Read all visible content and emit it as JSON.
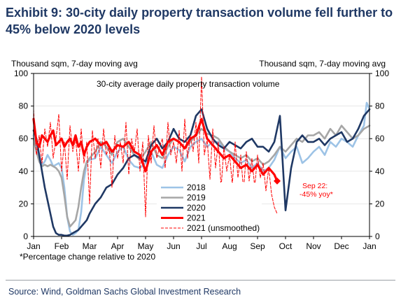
{
  "title_line1": "Exhibit 9: 30-city daily property transaction volume fell further to",
  "title_line2": "45% below 2020 levels",
  "left_unit": "Thousand sqm, 7-day moving avg",
  "right_unit": "Thousand sqm, 7-day moving avg",
  "footnote": "*Percentage change relative to 2020",
  "source": "Source: Wind, Goldman Sachs Global Investment Research",
  "chart_data": {
    "type": "line",
    "title": "30-city average daily property transaction volume",
    "ylabel_left": "Thousand sqm, 7-day moving avg",
    "ylabel_right": "Thousand sqm, 7-day moving avg",
    "xlim": [
      0,
      12
    ],
    "ylim": [
      0,
      100
    ],
    "y_ticks": [
      0,
      20,
      40,
      60,
      80,
      100
    ],
    "x_tick_labels": [
      "Jan",
      "Feb",
      "Mar",
      "Apr",
      "May",
      "Jun",
      "Jul",
      "Aug",
      "Sep",
      "Oct",
      "Nov",
      "Dec",
      "Jan"
    ],
    "legend_position": "lower-center",
    "annotation": {
      "line1": "Sep 22:",
      "line2": "-45% yoy*",
      "x": 8.7,
      "y": 34,
      "color": "#ff0000"
    },
    "series": [
      {
        "name": "2018",
        "color": "#9dc3e6",
        "width": 2.6,
        "dash": "",
        "x": [
          0,
          0.1,
          0.2,
          0.3,
          0.4,
          0.5,
          0.6,
          0.7,
          0.8,
          0.9,
          1.0,
          1.1,
          1.2,
          1.3,
          1.4,
          1.5,
          1.6,
          1.7,
          1.8,
          1.9,
          2.0,
          2.2,
          2.4,
          2.6,
          2.8,
          3.0,
          3.2,
          3.4,
          3.6,
          3.8,
          4.0,
          4.2,
          4.4,
          4.6,
          4.8,
          5.0,
          5.2,
          5.4,
          5.6,
          5.8,
          6.0,
          6.2,
          6.4,
          6.6,
          6.8,
          7.0,
          7.2,
          7.4,
          7.6,
          7.8,
          8.0,
          8.2,
          8.4,
          8.6,
          8.8,
          9.0,
          9.2,
          9.4,
          9.6,
          9.8,
          10.0,
          10.2,
          10.4,
          10.6,
          10.8,
          11.0,
          11.2,
          11.4,
          11.6,
          11.8,
          11.9,
          12.0
        ],
        "y": [
          62,
          55,
          48,
          44,
          46,
          50,
          47,
          43,
          44,
          45,
          42,
          30,
          12,
          3,
          1,
          2,
          4,
          15,
          35,
          45,
          47,
          48,
          55,
          50,
          45,
          52,
          55,
          47,
          43,
          42,
          45,
          52,
          44,
          42,
          50,
          55,
          53,
          46,
          55,
          58,
          60,
          55,
          58,
          58,
          54,
          52,
          48,
          45,
          47,
          42,
          45,
          40,
          42,
          47,
          55,
          48,
          52,
          55,
          45,
          48,
          52,
          55,
          50,
          58,
          55,
          60,
          58,
          55,
          62,
          68,
          82,
          78
        ]
      },
      {
        "name": "2019",
        "color": "#a6a6a6",
        "width": 2.6,
        "dash": "",
        "x": [
          0,
          0.1,
          0.2,
          0.3,
          0.4,
          0.5,
          0.6,
          0.7,
          0.8,
          0.9,
          1.0,
          1.1,
          1.2,
          1.3,
          1.4,
          1.5,
          1.6,
          1.7,
          1.8,
          1.9,
          2.0,
          2.2,
          2.4,
          2.6,
          2.8,
          3.0,
          3.2,
          3.4,
          3.6,
          3.8,
          4.0,
          4.2,
          4.4,
          4.6,
          4.8,
          5.0,
          5.2,
          5.4,
          5.6,
          5.8,
          6.0,
          6.2,
          6.4,
          6.6,
          6.8,
          7.0,
          7.2,
          7.4,
          7.6,
          7.8,
          8.0,
          8.2,
          8.4,
          8.6,
          8.8,
          9.0,
          9.2,
          9.4,
          9.6,
          9.8,
          10.0,
          10.2,
          10.4,
          10.6,
          10.8,
          11.0,
          11.2,
          11.4,
          11.6,
          11.8,
          12.0
        ],
        "y": [
          60,
          52,
          46,
          43,
          44,
          43,
          44,
          43,
          42,
          40,
          36,
          25,
          12,
          6,
          8,
          10,
          18,
          30,
          40,
          46,
          48,
          52,
          58,
          55,
          50,
          58,
          60,
          55,
          50,
          47,
          52,
          58,
          50,
          48,
          55,
          60,
          58,
          54,
          58,
          62,
          66,
          63,
          62,
          60,
          55,
          52,
          50,
          48,
          50,
          46,
          48,
          44,
          46,
          50,
          55,
          52,
          56,
          60,
          58,
          62,
          62,
          64,
          60,
          66,
          62,
          68,
          64,
          60,
          62,
          66,
          68
        ]
      },
      {
        "name": "2020",
        "color": "#1f3864",
        "width": 2.6,
        "dash": "",
        "x": [
          0,
          0.1,
          0.2,
          0.3,
          0.4,
          0.5,
          0.6,
          0.7,
          0.8,
          0.9,
          1.0,
          1.1,
          1.2,
          1.3,
          1.4,
          1.5,
          1.6,
          1.7,
          1.8,
          1.9,
          2.0,
          2.2,
          2.4,
          2.6,
          2.8,
          3.0,
          3.2,
          3.4,
          3.6,
          3.8,
          4.0,
          4.2,
          4.4,
          4.6,
          4.8,
          5.0,
          5.2,
          5.4,
          5.6,
          5.8,
          6.0,
          6.2,
          6.4,
          6.6,
          6.8,
          7.0,
          7.2,
          7.4,
          7.6,
          7.8,
          8.0,
          8.2,
          8.4,
          8.6,
          8.8,
          9.0,
          9.2,
          9.4,
          9.6,
          9.8,
          10.0,
          10.2,
          10.4,
          10.6,
          10.8,
          11.0,
          11.2,
          11.4,
          11.6,
          11.8,
          12.0
        ],
        "y": [
          65,
          60,
          50,
          40,
          30,
          22,
          14,
          6,
          2,
          1,
          1,
          0.5,
          0.5,
          1,
          2,
          3,
          4,
          6,
          8,
          10,
          14,
          20,
          24,
          30,
          32,
          38,
          42,
          48,
          50,
          48,
          46,
          56,
          60,
          54,
          58,
          66,
          60,
          58,
          62,
          74,
          78,
          66,
          60,
          56,
          54,
          58,
          56,
          54,
          58,
          60,
          55,
          55,
          52,
          58,
          74,
          16,
          42,
          58,
          62,
          58,
          58,
          60,
          56,
          60,
          62,
          64,
          58,
          60,
          66,
          74,
          78
        ]
      },
      {
        "name": "2021 (unsmoothed)",
        "color": "#ff0000",
        "width": 1.0,
        "dash": "4,2",
        "x": [
          0,
          0.1,
          0.2,
          0.3,
          0.4,
          0.5,
          0.6,
          0.7,
          0.8,
          0.9,
          1.0,
          1.1,
          1.2,
          1.3,
          1.4,
          1.5,
          1.6,
          1.7,
          1.8,
          1.9,
          2.0,
          2.1,
          2.2,
          2.3,
          2.4,
          2.5,
          2.6,
          2.7,
          2.8,
          2.9,
          3.0,
          3.1,
          3.2,
          3.3,
          3.4,
          3.5,
          3.6,
          3.7,
          3.8,
          3.9,
          4.0,
          4.1,
          4.2,
          4.3,
          4.4,
          4.5,
          4.6,
          4.7,
          4.8,
          4.9,
          5.0,
          5.1,
          5.2,
          5.3,
          5.4,
          5.5,
          5.6,
          5.7,
          5.8,
          5.9,
          6.0,
          6.1,
          6.2,
          6.3,
          6.4,
          6.5,
          6.6,
          6.7,
          6.8,
          6.9,
          7.0,
          7.1,
          7.2,
          7.3,
          7.4,
          7.5,
          7.6,
          7.7,
          7.8,
          7.9,
          8.0,
          8.1,
          8.2,
          8.3,
          8.4,
          8.5,
          8.6,
          8.7
        ],
        "y": [
          78,
          50,
          62,
          45,
          66,
          55,
          70,
          48,
          60,
          75,
          40,
          58,
          35,
          68,
          52,
          60,
          40,
          66,
          45,
          58,
          20,
          65,
          48,
          60,
          42,
          66,
          50,
          55,
          30,
          62,
          48,
          58,
          45,
          70,
          38,
          60,
          52,
          66,
          40,
          58,
          12,
          62,
          45,
          68,
          48,
          55,
          60,
          42,
          70,
          50,
          58,
          45,
          65,
          40,
          72,
          48,
          62,
          52,
          70,
          45,
          98,
          50,
          60,
          35,
          66,
          42,
          58,
          30,
          55,
          40,
          50,
          32,
          58,
          36,
          50,
          28,
          52,
          34,
          48,
          30,
          50,
          36,
          45,
          28,
          42,
          26,
          18,
          14
        ]
      },
      {
        "name": "2021",
        "color": "#ff0000",
        "width": 3.2,
        "dash": "",
        "x": [
          0,
          0.1,
          0.2,
          0.3,
          0.4,
          0.5,
          0.6,
          0.7,
          0.8,
          0.9,
          1.0,
          1.1,
          1.2,
          1.3,
          1.4,
          1.5,
          1.6,
          1.7,
          1.8,
          1.9,
          2.0,
          2.2,
          2.4,
          2.6,
          2.8,
          3.0,
          3.2,
          3.4,
          3.6,
          3.8,
          4.0,
          4.2,
          4.4,
          4.6,
          4.8,
          5.0,
          5.2,
          5.4,
          5.6,
          5.8,
          6.0,
          6.2,
          6.4,
          6.6,
          6.8,
          7.0,
          7.2,
          7.4,
          7.6,
          7.8,
          8.0,
          8.2,
          8.4,
          8.6,
          8.7
        ],
        "y": [
          72,
          58,
          55,
          62,
          60,
          58,
          62,
          65,
          56,
          58,
          60,
          55,
          58,
          60,
          56,
          62,
          55,
          58,
          50,
          55,
          58,
          60,
          56,
          58,
          52,
          56,
          55,
          58,
          52,
          50,
          40,
          52,
          56,
          50,
          58,
          60,
          58,
          54,
          60,
          62,
          72,
          60,
          56,
          52,
          48,
          50,
          46,
          42,
          44,
          40,
          44,
          38,
          42,
          38,
          34
        ]
      }
    ],
    "end_marker": {
      "x": 8.7,
      "y": 34,
      "color": "#ff0000"
    }
  }
}
